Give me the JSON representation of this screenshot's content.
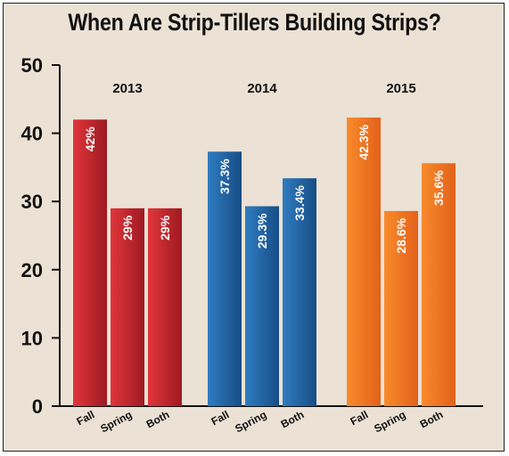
{
  "chart_data": {
    "type": "bar",
    "title": "When Are Strip-Tillers Building Strips?",
    "ylim": [
      0,
      50
    ],
    "yticks": [
      "0",
      "10",
      "20",
      "30",
      "40",
      "50"
    ],
    "categories": [
      "Fall",
      "Spring",
      "Both"
    ],
    "groups": [
      {
        "name": "2013",
        "values": [
          42,
          29,
          29
        ],
        "labels": [
          "42%",
          "29%",
          "29%"
        ],
        "color": "#c8222b"
      },
      {
        "name": "2014",
        "values": [
          37.3,
          29.3,
          33.4
        ],
        "labels": [
          "37.3%",
          "29.3%",
          "33.4%"
        ],
        "color": "#1f63a3"
      },
      {
        "name": "2015",
        "values": [
          42.3,
          28.6,
          35.6
        ],
        "labels": [
          "42.3%",
          "28.6%",
          "35.6%"
        ],
        "color": "#f0741e"
      }
    ],
    "grid": false,
    "legend": "none"
  }
}
